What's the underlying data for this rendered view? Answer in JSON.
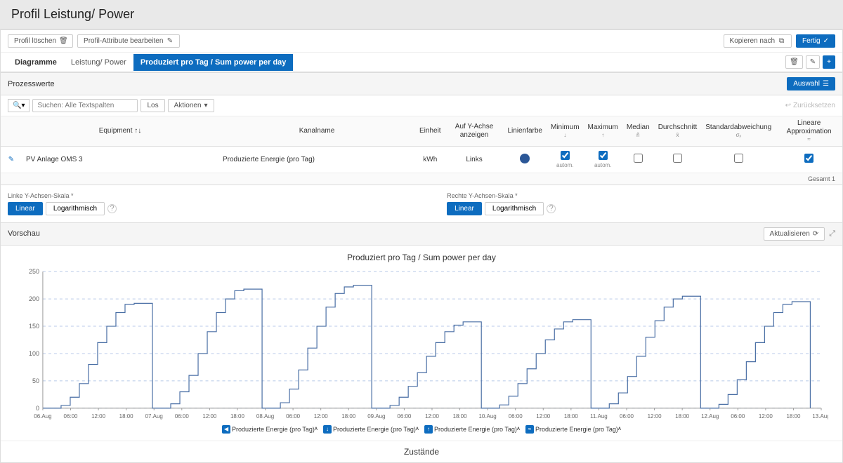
{
  "page": {
    "title": "Profil Leistung/ Power"
  },
  "toolbar": {
    "delete_profile": "Profil löschen",
    "edit_attributes": "Profil-Attribute bearbeiten",
    "copy_after": "Kopieren nach",
    "done": "Fertig"
  },
  "tabs": {
    "main": "Diagramme",
    "sub1": "Leistung/ Power",
    "sub2_active": "Produziert pro Tag / Sum power per day"
  },
  "process_section": {
    "title": "Prozesswerte",
    "select_btn": "Auswahl"
  },
  "search": {
    "placeholder": "Suchen: Alle Textspalten",
    "go": "Los",
    "actions": "Aktionen",
    "reset": "Zurücksetzen"
  },
  "table": {
    "headers": {
      "equipment": "Equipment",
      "channel": "Kanalname",
      "unit": "Einheit",
      "show_y": "Auf Y-Achse anzeigen",
      "line_color": "Linienfarbe",
      "minimum": "Minimum",
      "maximum": "Maximum",
      "median": "Median",
      "average": "Durchschnitt",
      "stddev": "Standardabweichung",
      "linear_approx": "Lineare Approximation"
    },
    "sub_headers": {
      "min_sym": "↓",
      "max_sym": "↑",
      "median_sym": "ñ",
      "avg_sym": "x̄",
      "stddev_sym": "σₓ",
      "linear_sym": "≈"
    },
    "row": {
      "equipment": "PV Anlage OMS 3",
      "channel": "Produzierte Energie (pro Tag)",
      "unit": "kWh",
      "show_y": "Links",
      "color": "#2b5797",
      "min_checked": true,
      "max_checked": true,
      "median_checked": false,
      "avg_checked": false,
      "stddev_checked": false,
      "linear_checked": true,
      "auto_label": "autom."
    },
    "footer_total": "Gesamt 1"
  },
  "scales": {
    "left_label": "Linke Y-Achsen-Skala *",
    "right_label": "Rechte Y-Achsen-Skala *",
    "linear": "Linear",
    "log": "Logarithmisch"
  },
  "preview": {
    "title": "Vorschau",
    "refresh": "Aktualisieren",
    "chart_title": "Produziert pro Tag / Sum power per day"
  },
  "chart": {
    "type": "line-step",
    "ylim": [
      0,
      250
    ],
    "ytick_step": 50,
    "y_ticks": [
      0,
      50,
      100,
      150,
      200,
      250
    ],
    "grid_color": "#b8c9e8",
    "line_color": "#4a6fa5",
    "background": "#ffffff",
    "x_labels": [
      "06.Aug",
      "06:00",
      "12:00",
      "18:00",
      "07.Aug",
      "06:00",
      "12:00",
      "18:00",
      "08.Aug",
      "06:00",
      "12:00",
      "18:00",
      "09.Aug",
      "06:00",
      "12:00",
      "18:00",
      "10.Aug",
      "06:00",
      "12:00",
      "18:00",
      "11.Aug",
      "06:00",
      "12:00",
      "18:00",
      "12.Aug",
      "06:00",
      "12:00",
      "18:00",
      "13.Aug"
    ],
    "days": [
      {
        "peak": 192,
        "profile": [
          0,
          0,
          5,
          20,
          45,
          80,
          120,
          150,
          175,
          190,
          192,
          192,
          0
        ]
      },
      {
        "peak": 218,
        "profile": [
          0,
          0,
          8,
          30,
          60,
          100,
          140,
          175,
          200,
          215,
          218,
          218,
          0
        ]
      },
      {
        "peak": 225,
        "profile": [
          0,
          0,
          10,
          35,
          70,
          110,
          150,
          185,
          210,
          222,
          225,
          225,
          0
        ]
      },
      {
        "peak": 158,
        "profile": [
          0,
          0,
          5,
          20,
          40,
          65,
          95,
          120,
          140,
          152,
          158,
          158,
          0
        ]
      },
      {
        "peak": 162,
        "profile": [
          0,
          0,
          6,
          22,
          45,
          72,
          100,
          125,
          145,
          158,
          162,
          162,
          0
        ]
      },
      {
        "peak": 205,
        "profile": [
          0,
          0,
          8,
          28,
          58,
          95,
          130,
          160,
          185,
          200,
          205,
          205,
          0
        ]
      },
      {
        "peak": 195,
        "profile": [
          0,
          0,
          7,
          25,
          52,
          85,
          120,
          150,
          175,
          190,
          195,
          195,
          0
        ]
      }
    ],
    "legend": [
      {
        "badge": "◀",
        "label": "Produzierte Energie (pro Tag)ᴬ"
      },
      {
        "badge": "↓",
        "label": "Produzierte Energie (pro Tag)ᴬ"
      },
      {
        "badge": "↑",
        "label": "Produzierte Energie (pro Tag)ᴬ"
      },
      {
        "badge": "≈",
        "label": "Produzierte Energie (pro Tag)ᴬ"
      }
    ]
  },
  "zustande_title": "Zustände"
}
